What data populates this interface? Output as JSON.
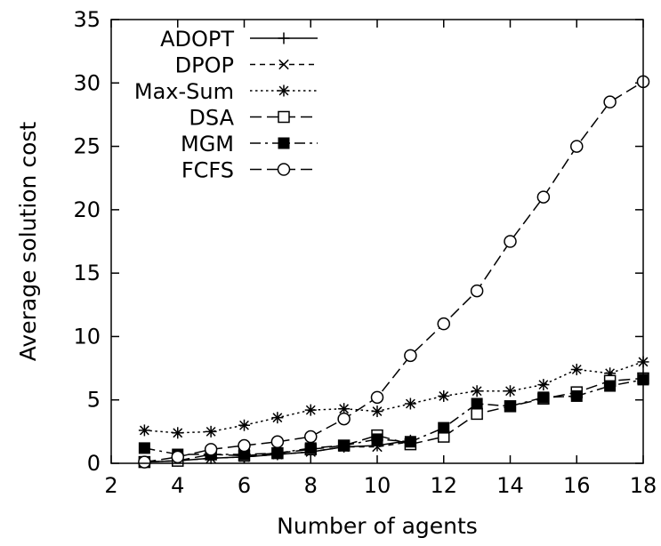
{
  "chart_data": {
    "type": "line",
    "title": "",
    "xlabel": "Number of agents",
    "ylabel": "Average solution cost",
    "xlim": [
      2,
      18
    ],
    "ylim": [
      0,
      35
    ],
    "xticks": [
      2,
      4,
      6,
      8,
      10,
      12,
      14,
      16,
      18
    ],
    "yticks": [
      0,
      5,
      10,
      15,
      20,
      25,
      30,
      35
    ],
    "grid": false,
    "legend_position": "top-left",
    "x": [
      3,
      4,
      5,
      6,
      7,
      8,
      9,
      10,
      11,
      12,
      13,
      14,
      15,
      16,
      17,
      18
    ],
    "series": [
      {
        "name": "ADOPT",
        "marker": "plus",
        "dash": "solid",
        "values": [
          0.1,
          0.2,
          0.4,
          0.5,
          0.7,
          0.9,
          1.3,
          1.4,
          1.8,
          null,
          null,
          null,
          null,
          null,
          null,
          null
        ]
      },
      {
        "name": "DPOP",
        "marker": "x",
        "dash": "dashed",
        "values": [
          0.1,
          0.2,
          0.4,
          0.5,
          0.7,
          0.9,
          1.3,
          1.3,
          1.7,
          null,
          null,
          null,
          null,
          null,
          null,
          null
        ]
      },
      {
        "name": "Max-Sum",
        "marker": "asterisk",
        "dash": "dotted",
        "values": [
          2.6,
          2.4,
          2.5,
          3.0,
          3.6,
          4.2,
          4.3,
          4.1,
          4.7,
          5.3,
          5.7,
          5.7,
          6.2,
          7.4,
          7.1,
          8.0
        ]
      },
      {
        "name": "DSA",
        "marker": "open-square",
        "dash": "longdash",
        "values": [
          0.1,
          0.2,
          0.7,
          0.6,
          0.8,
          1.1,
          1.4,
          2.2,
          1.5,
          2.1,
          3.9,
          4.5,
          5.1,
          5.6,
          6.5,
          6.7
        ]
      },
      {
        "name": "MGM",
        "marker": "filled-square",
        "dash": "dashdot",
        "values": [
          1.2,
          0.7,
          0.7,
          0.7,
          0.8,
          1.2,
          1.4,
          1.9,
          1.7,
          2.8,
          4.7,
          4.5,
          5.2,
          5.3,
          6.1,
          6.6
        ]
      },
      {
        "name": "FCFS",
        "marker": "open-circle",
        "dash": "longdash",
        "values": [
          0.1,
          0.5,
          1.1,
          1.4,
          1.7,
          2.1,
          3.5,
          5.2,
          8.5,
          11.0,
          13.6,
          17.5,
          21.0,
          25.0,
          28.5,
          30.1
        ]
      }
    ]
  }
}
